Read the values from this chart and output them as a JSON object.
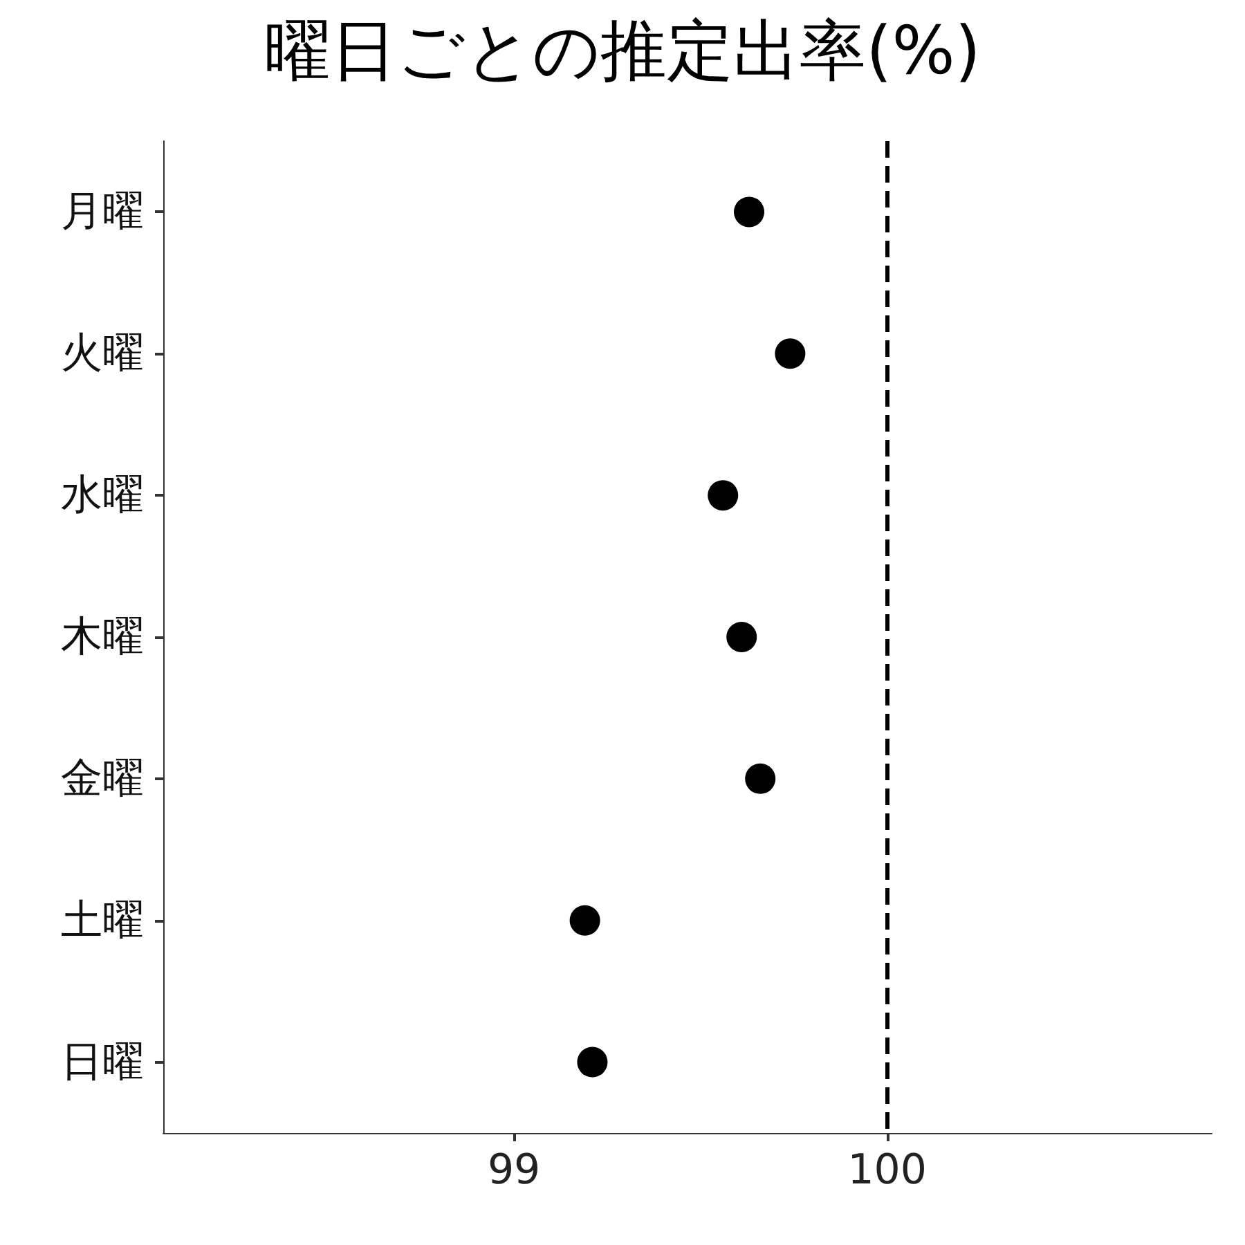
{
  "chart_data": {
    "type": "scatter",
    "orientation": "horizontal",
    "title": "曜日ごとの推定出率(%)",
    "categories": [
      "月曜",
      "火曜",
      "水曜",
      "木曜",
      "金曜",
      "土曜",
      "日曜"
    ],
    "series": [
      {
        "color": "#000000",
        "values": [
          99.63,
          99.74,
          99.56,
          99.61,
          99.66,
          99.19,
          99.21
        ]
      }
    ],
    "xlim": [
      98.06,
      100.87
    ],
    "xticks": [
      99,
      100
    ],
    "ref_lines": [
      {
        "axis": "x",
        "value": 100,
        "color": "#000000",
        "line_style": "dashed"
      }
    ],
    "marker": "circle",
    "grid": false
  }
}
